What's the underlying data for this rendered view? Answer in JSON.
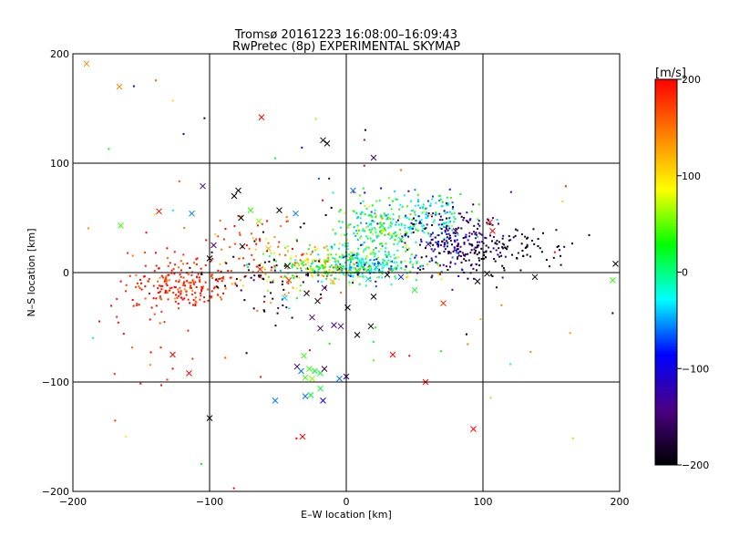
{
  "chart_data": {
    "type": "scatter",
    "title": "Tromsø 20161223 16:08:00–16:09:43",
    "subtitle": "RwPretec (8p) EXPERIMENTAL SKYMAP",
    "xlabel": "E–W location [km]",
    "ylabel": "N–S location [km]",
    "xlim": [
      -200,
      200
    ],
    "ylim": [
      -200,
      200
    ],
    "xticks": [
      "−200",
      "−100",
      "0",
      "100",
      "200"
    ],
    "yticks": [
      "−200",
      "−100",
      "0",
      "100",
      "200"
    ],
    "xtick_values": [
      -200,
      -100,
      0,
      100,
      200
    ],
    "ytick_values": [
      -200,
      -100,
      0,
      100,
      200
    ],
    "grid": true,
    "colorbar": {
      "label": "[m/s]",
      "range": [
        -200,
        200
      ],
      "ticks": [
        "200",
        "100",
        "0",
        "−100",
        "−200"
      ],
      "tick_values": [
        200,
        100,
        0,
        -100,
        -200
      ],
      "colors": [
        "#000000",
        "#4b0082",
        "#0000ff",
        "#00ffff",
        "#00ff00",
        "#ffff00",
        "#ff8000",
        "#ff0000"
      ]
    },
    "crosses": [
      {
        "x": -190,
        "y": 191,
        "v": 140
      },
      {
        "x": -166,
        "y": 170,
        "v": 140
      },
      {
        "x": -62,
        "y": 142,
        "v": 200
      },
      {
        "x": -17,
        "y": 121,
        "v": -200
      },
      {
        "x": -14,
        "y": 118,
        "v": -200
      },
      {
        "x": 20,
        "y": 105,
        "v": -160
      },
      {
        "x": -105,
        "y": 79,
        "v": -140
      },
      {
        "x": -79,
        "y": 75,
        "v": -200
      },
      {
        "x": -82,
        "y": 70,
        "v": -200
      },
      {
        "x": -49,
        "y": 57,
        "v": -200
      },
      {
        "x": -70,
        "y": 57,
        "v": 40
      },
      {
        "x": -165,
        "y": 43,
        "v": 40
      },
      {
        "x": -137,
        "y": 56,
        "v": 200
      },
      {
        "x": -113,
        "y": 54,
        "v": -60
      },
      {
        "x": -77,
        "y": 50,
        "v": -200
      },
      {
        "x": -64,
        "y": 47,
        "v": 60
      },
      {
        "x": -37,
        "y": 54,
        "v": -60
      },
      {
        "x": 5,
        "y": 75,
        "v": -60
      },
      {
        "x": -97,
        "y": 25,
        "v": -140
      },
      {
        "x": -76,
        "y": 24,
        "v": -200
      },
      {
        "x": -57,
        "y": 22,
        "v": 120
      },
      {
        "x": -43,
        "y": 6,
        "v": -200
      },
      {
        "x": -100,
        "y": 13,
        "v": -200
      },
      {
        "x": -63,
        "y": 3,
        "v": 180
      },
      {
        "x": -26,
        "y": 2,
        "v": 80
      },
      {
        "x": -42,
        "y": -7,
        "v": 180
      },
      {
        "x": -10,
        "y": -8,
        "v": 120
      },
      {
        "x": -29,
        "y": -19,
        "v": -200
      },
      {
        "x": -16,
        "y": -14,
        "v": -140
      },
      {
        "x": -45,
        "y": -23,
        "v": -40
      },
      {
        "x": -21,
        "y": -26,
        "v": -200
      },
      {
        "x": 1,
        "y": -32,
        "v": -200
      },
      {
        "x": 20,
        "y": -22,
        "v": -200
      },
      {
        "x": 50,
        "y": -16,
        "v": 20
      },
      {
        "x": 71,
        "y": -28,
        "v": 180
      },
      {
        "x": 96,
        "y": -8,
        "v": -200
      },
      {
        "x": 103,
        "y": -1,
        "v": -200
      },
      {
        "x": 105,
        "y": 46,
        "v": 200
      },
      {
        "x": 107,
        "y": 38,
        "v": 200
      },
      {
        "x": 138,
        "y": -4,
        "v": -200
      },
      {
        "x": 195,
        "y": -7,
        "v": 40
      },
      {
        "x": 197,
        "y": 8,
        "v": -200
      },
      {
        "x": -25,
        "y": -41,
        "v": -140
      },
      {
        "x": -19,
        "y": -51,
        "v": -160
      },
      {
        "x": -9,
        "y": -48,
        "v": -140
      },
      {
        "x": -4,
        "y": -49,
        "v": -140
      },
      {
        "x": 8,
        "y": -57,
        "v": -200
      },
      {
        "x": 18,
        "y": -49,
        "v": -200
      },
      {
        "x": 34,
        "y": -75,
        "v": 200
      },
      {
        "x": 58,
        "y": -100,
        "v": 200
      },
      {
        "x": 93,
        "y": -143,
        "v": 200
      },
      {
        "x": -31,
        "y": -76,
        "v": 40
      },
      {
        "x": -36,
        "y": -86,
        "v": -160
      },
      {
        "x": -33,
        "y": -90,
        "v": -60
      },
      {
        "x": -27,
        "y": -88,
        "v": 40
      },
      {
        "x": -23,
        "y": -90,
        "v": 20
      },
      {
        "x": -30,
        "y": -96,
        "v": 40
      },
      {
        "x": -25,
        "y": -97,
        "v": 60
      },
      {
        "x": -19,
        "y": -92,
        "v": 20
      },
      {
        "x": -16,
        "y": -88,
        "v": -160
      },
      {
        "x": -5,
        "y": -97,
        "v": -60
      },
      {
        "x": 0,
        "y": -95,
        "v": -160
      },
      {
        "x": -30,
        "y": -113,
        "v": -60
      },
      {
        "x": -26,
        "y": -112,
        "v": 20
      },
      {
        "x": -19,
        "y": -106,
        "v": 20
      },
      {
        "x": -17,
        "y": -117,
        "v": -100
      },
      {
        "x": -52,
        "y": -117,
        "v": -60
      },
      {
        "x": -100,
        "y": -133,
        "v": -200
      },
      {
        "x": -32,
        "y": -150,
        "v": 200
      },
      {
        "x": -127,
        "y": -75,
        "v": 200
      },
      {
        "x": -115,
        "y": -92,
        "v": 200
      },
      {
        "x": 10,
        "y": 10,
        "v": -20
      },
      {
        "x": 22,
        "y": 5,
        "v": -40
      },
      {
        "x": 26,
        "y": 43,
        "v": 20
      },
      {
        "x": 40,
        "y": 30,
        "v": 20
      },
      {
        "x": 60,
        "y": 26,
        "v": -140
      },
      {
        "x": 80,
        "y": 38,
        "v": -160
      },
      {
        "x": 30,
        "y": -2,
        "v": -200
      },
      {
        "x": 16,
        "y": -6,
        "v": -40
      },
      {
        "x": 40,
        "y": -4,
        "v": -80
      },
      {
        "x": 8,
        "y": 2,
        "v": 20
      },
      {
        "x": -5,
        "y": 5,
        "v": 60
      }
    ],
    "clusters": [
      {
        "cx": 22,
        "cy": 37,
        "sx": 15,
        "sy": 16,
        "n": 220,
        "v": 10,
        "dv": 45
      },
      {
        "cx": 58,
        "cy": 53,
        "sx": 16,
        "sy": 12,
        "n": 140,
        "v": -20,
        "dv": 40
      },
      {
        "cx": 78,
        "cy": 28,
        "sx": 18,
        "sy": 15,
        "n": 240,
        "v": -150,
        "dv": 40
      },
      {
        "cx": 120,
        "cy": 21,
        "sx": 22,
        "sy": 11,
        "n": 90,
        "v": -195,
        "dv": 15
      },
      {
        "cx": 10,
        "cy": 6,
        "sx": 22,
        "sy": 7,
        "n": 300,
        "v": -10,
        "dv": 50
      },
      {
        "cx": -25,
        "cy": 5,
        "sx": 20,
        "sy": 9,
        "n": 130,
        "v": 70,
        "dv": 50
      },
      {
        "cx": -122,
        "cy": -10,
        "sx": 18,
        "sy": 13,
        "n": 200,
        "v": 185,
        "dv": 20
      },
      {
        "cx": -70,
        "cy": 10,
        "sx": 20,
        "sy": 20,
        "n": 90,
        "v": 170,
        "dv": 40
      },
      {
        "cx": -55,
        "cy": -8,
        "sx": 20,
        "sy": 16,
        "n": 60,
        "v": -190,
        "dv": 20
      },
      {
        "cx": -150,
        "cy": -55,
        "sx": 22,
        "sy": 40,
        "n": 25,
        "v": 190,
        "dv": 15
      },
      {
        "cx": 0,
        "cy": 0,
        "sx": 130,
        "sy": 100,
        "n": 90,
        "v": 0,
        "dv": 200
      }
    ]
  }
}
